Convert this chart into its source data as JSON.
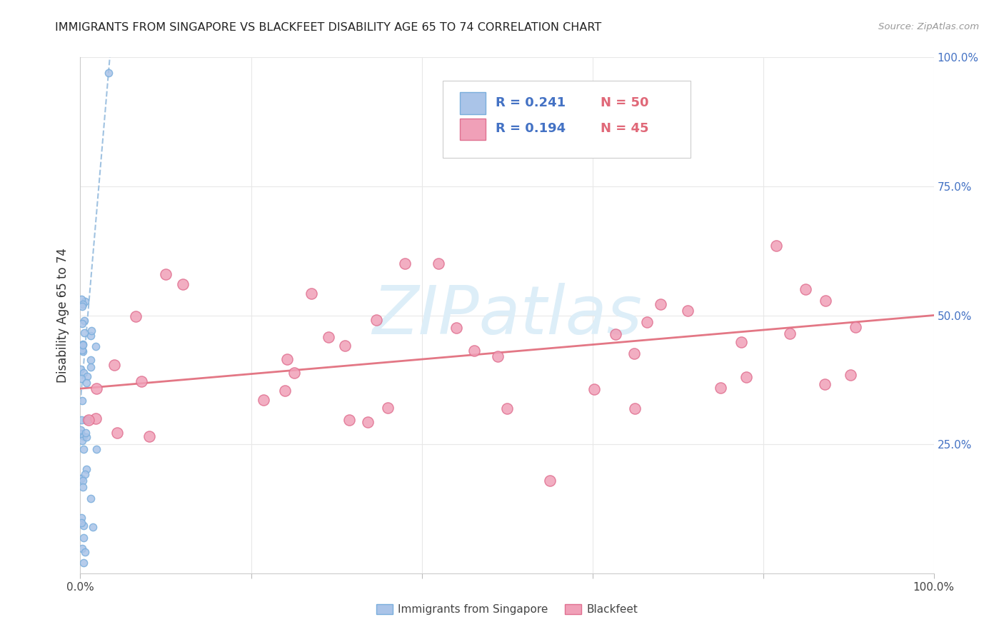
{
  "title": "IMMIGRANTS FROM SINGAPORE VS BLACKFEET DISABILITY AGE 65 TO 74 CORRELATION CHART",
  "source": "Source: ZipAtlas.com",
  "ylabel": "Disability Age 65 to 74",
  "xlim": [
    0.0,
    1.0
  ],
  "ylim": [
    0.0,
    1.0
  ],
  "color_singapore": "#aac4e8",
  "color_singapore_edge": "#7aaedc",
  "color_blackfeet": "#f0a0b8",
  "color_blackfeet_edge": "#e07090",
  "color_sg_trend": "#90b8dc",
  "color_bf_trend": "#e06878",
  "watermark_color": "#ddeef8",
  "watermark_text": "ZIPatlas",
  "legend_r1": "R = 0.241",
  "legend_n1": "N = 50",
  "legend_r2": "R = 0.194",
  "legend_n2": "N = 45",
  "legend_text_color_r": "#4472c4",
  "legend_text_color_n": "#e06878",
  "right_tick_color": "#4472c4",
  "grid_color": "#e8e8e8"
}
